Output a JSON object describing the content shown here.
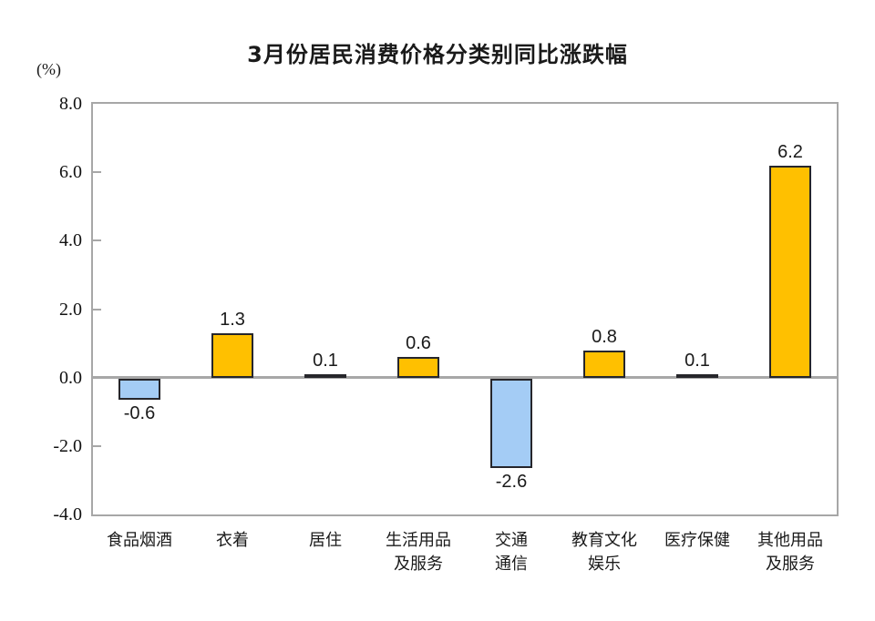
{
  "chart_data": {
    "type": "bar",
    "title": "3月份居民消费价格分类别同比涨跌幅",
    "unit_label": "(%)",
    "categories": [
      "食品烟酒",
      "衣着",
      "居住",
      "生活用品及服务",
      "交通通信",
      "教育文化娱乐",
      "医疗保健",
      "其他用品及服务"
    ],
    "category_lines": [
      [
        "食品烟酒"
      ],
      [
        "衣着"
      ],
      [
        "居住"
      ],
      [
        "生活用品",
        "及服务"
      ],
      [
        "交通",
        "通信"
      ],
      [
        "教育文化",
        "娱乐"
      ],
      [
        "医疗保健"
      ],
      [
        "其他用品",
        "及服务"
      ]
    ],
    "values": [
      -0.6,
      1.3,
      0.1,
      0.6,
      -2.6,
      0.8,
      0.1,
      6.2
    ],
    "value_labels": [
      "-0.6",
      "1.3",
      "0.1",
      "0.6",
      "-2.6",
      "0.8",
      "0.1",
      "6.2"
    ],
    "ylim": [
      -4.0,
      8.0
    ],
    "yticks": [
      {
        "value": 8,
        "label": "8.0"
      },
      {
        "value": 6,
        "label": "6.0"
      },
      {
        "value": 4,
        "label": "4.0"
      },
      {
        "value": 2,
        "label": "2.0"
      },
      {
        "value": 0,
        "label": "0.0"
      },
      {
        "value": -2,
        "label": "-2.0"
      },
      {
        "value": -4,
        "label": "-4.0"
      }
    ],
    "grid": false,
    "legend": null,
    "colors": {
      "positive_bar": "#FFC000",
      "negative_bar": "#A4CCF5",
      "bar_border": "#26262B",
      "axis_border": "#A7A7A7",
      "zero_line": "#A7A7A7",
      "text": "#1A1A1A"
    }
  }
}
